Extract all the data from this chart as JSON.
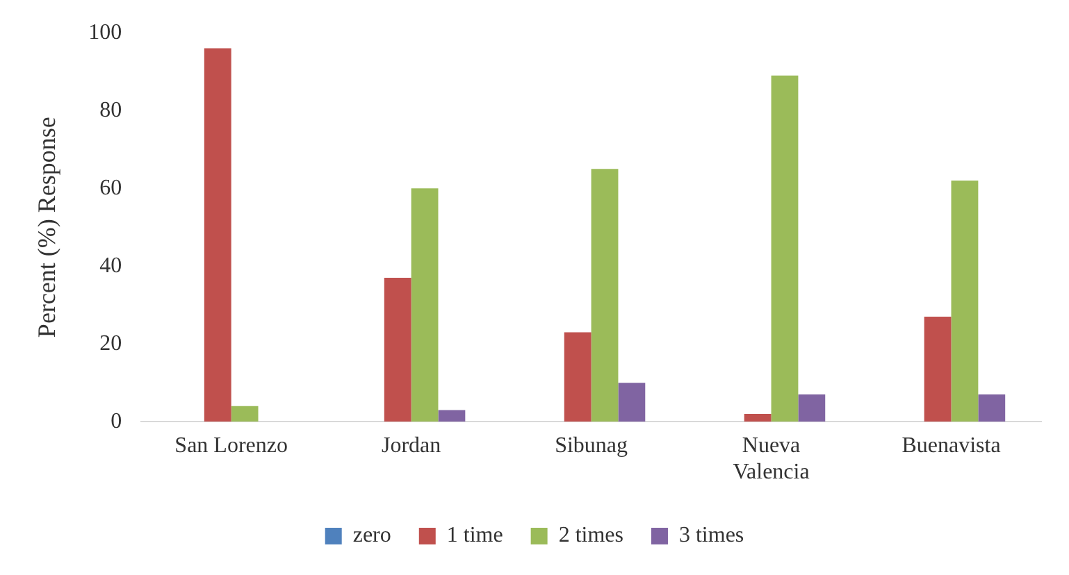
{
  "chart_data": {
    "type": "bar",
    "ylabel": "Percent (%) Response",
    "categories": [
      "San Lorenzo",
      "Jordan",
      "Sibunag",
      "Nueva Valencia",
      "Buenavista"
    ],
    "series": [
      {
        "name": "zero",
        "color": "#4f81bd",
        "values": [
          0,
          0,
          0,
          0,
          0
        ]
      },
      {
        "name": "1 time",
        "color": "#c0504d",
        "values": [
          96,
          37,
          23,
          2,
          27
        ]
      },
      {
        "name": "2 times",
        "color": "#9bbb59",
        "values": [
          4,
          60,
          65,
          89,
          62
        ]
      },
      {
        "name": "3 times",
        "color": "#8064a2",
        "values": [
          0,
          3,
          10,
          7,
          7
        ]
      }
    ],
    "ylim": [
      0,
      100
    ],
    "yticks": [
      0,
      20,
      40,
      60,
      80,
      100
    ],
    "grid": false,
    "legend": "bottom"
  }
}
